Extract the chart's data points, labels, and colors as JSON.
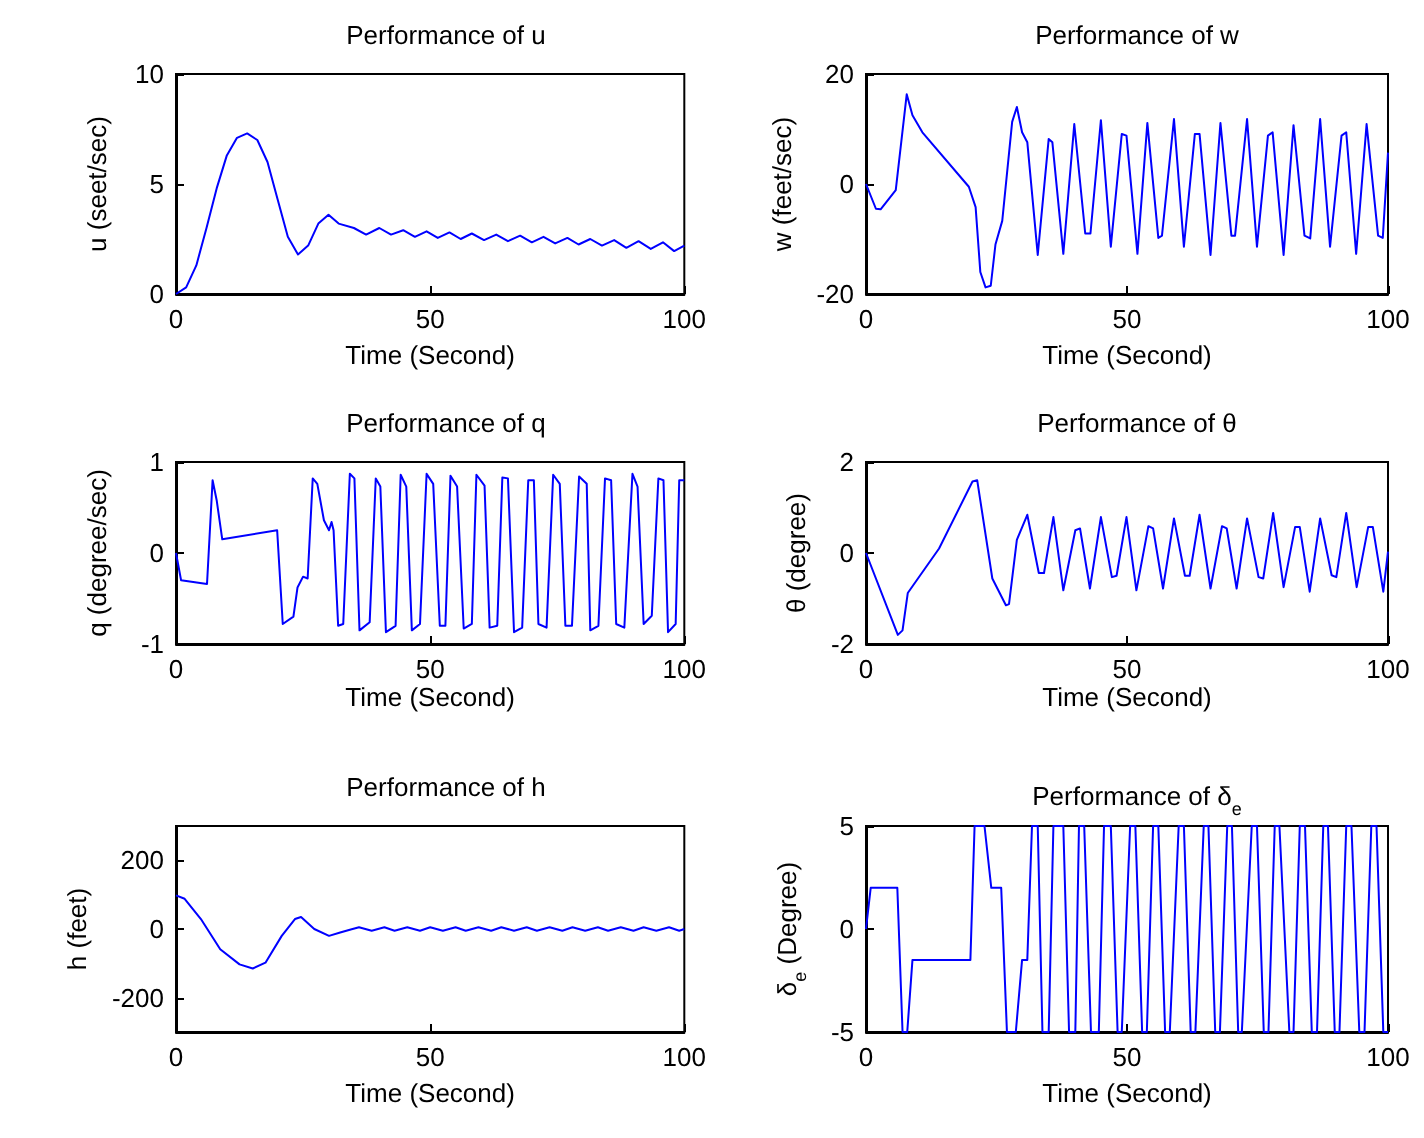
{
  "chart_data": [
    {
      "type": "line",
      "title": "Performance of u",
      "xlabel": "Time (Second)",
      "ylabel": "u (seet/sec)",
      "xlim": [
        0,
        100
      ],
      "ylim": [
        0,
        10
      ],
      "xticks": [
        0,
        50,
        100
      ],
      "yticks": [
        0,
        5,
        10
      ],
      "x": [
        0,
        2,
        4,
        6,
        8,
        10,
        12,
        14,
        16,
        18,
        20,
        22,
        24,
        26,
        28,
        30,
        32,
        35,
        37.4,
        40,
        42.3,
        44.7,
        47,
        49.3,
        51.5,
        53.8,
        56,
        58.2,
        60.6,
        63,
        65.3,
        67.7,
        70,
        72.3,
        74.6,
        77,
        79.2,
        81.5,
        83.8,
        86.2,
        88.6,
        91,
        93.4,
        95.8,
        98,
        100
      ],
      "series": [
        {
          "color": "#0000ff",
          "values": [
            0,
            0.3,
            1.3,
            3.0,
            4.8,
            6.3,
            7.1,
            7.3,
            7.0,
            6.0,
            4.3,
            2.6,
            1.8,
            2.2,
            3.2,
            3.6,
            3.2,
            3.0,
            2.7,
            3.0,
            2.7,
            2.9,
            2.6,
            2.85,
            2.55,
            2.8,
            2.5,
            2.75,
            2.45,
            2.7,
            2.4,
            2.65,
            2.35,
            2.6,
            2.3,
            2.55,
            2.25,
            2.5,
            2.2,
            2.45,
            2.1,
            2.4,
            2.05,
            2.35,
            1.95,
            2.2
          ]
        }
      ]
    },
    {
      "type": "line",
      "title": "Performance of w",
      "xlabel": "Time (Second)",
      "ylabel": "w (feet/sec)",
      "xlim": [
        0,
        100
      ],
      "ylim": [
        -20,
        20
      ],
      "xticks": [
        0,
        50,
        100
      ],
      "yticks": [
        -20,
        0,
        20
      ],
      "x": [
        0,
        1.9,
        2.8,
        5.7,
        7.8,
        8.9,
        10.8,
        19.7,
        21,
        21.9,
        22.9,
        23.9,
        24.8,
        26.1,
        28,
        28.9,
        29.9,
        30.9,
        32.9,
        35,
        35.7,
        37.8,
        39.9,
        42,
        43,
        45,
        46.9,
        49,
        49.9,
        52,
        53.9,
        56,
        56.7,
        59,
        60.9,
        63,
        63.9,
        66,
        67.9,
        70,
        70.7,
        73,
        74.9,
        77,
        77.9,
        80,
        81.9,
        84,
        85.1,
        87,
        88.9,
        91.1,
        92,
        93.9,
        95.9,
        98.1,
        99,
        100
      ],
      "series": [
        {
          "color": "#0000ff",
          "values": [
            0,
            -4.5,
            -4.6,
            -1.1,
            16.3,
            12.5,
            9.4,
            -0.5,
            -4.2,
            -16,
            -18.8,
            -18.5,
            -11,
            -6.7,
            11.3,
            14,
            9.4,
            7.6,
            -12.9,
            8.2,
            7.6,
            -12.7,
            10.9,
            -9,
            -9,
            11.6,
            -11.4,
            9.1,
            8.8,
            -12.7,
            11.1,
            -9.8,
            -9.4,
            11.8,
            -11.4,
            9.1,
            9.1,
            -12.9,
            11.1,
            -9.4,
            -9.4,
            11.8,
            -11.4,
            8.8,
            9.4,
            -12.9,
            10.7,
            -9.4,
            -9.9,
            11.8,
            -11.4,
            8.8,
            9.4,
            -12.7,
            10.9,
            -9.4,
            -9.8,
            5.7
          ]
        }
      ]
    },
    {
      "type": "line",
      "title": "Performance of q",
      "xlabel": "Time (Second)",
      "ylabel": "q (degree/sec)",
      "xlim": [
        0,
        100
      ],
      "ylim": [
        -1,
        1
      ],
      "xticks": [
        0,
        50,
        100
      ],
      "yticks": [
        -1,
        0,
        1
      ],
      "x": [
        0,
        1,
        6.1,
        7.2,
        8,
        9.1,
        19.9,
        21,
        23.1,
        23.9,
        25,
        25.9,
        26.9,
        27.8,
        29.1,
        30.1,
        30.6,
        31,
        31.9,
        32.9,
        34.2,
        35.1,
        36.1,
        38.1,
        39.3,
        40.2,
        41.3,
        43.2,
        44.2,
        45.3,
        46.4,
        48,
        49.3,
        50.6,
        51.9,
        53,
        54,
        55.3,
        56.6,
        58.2,
        59.1,
        60.7,
        61.7,
        63.2,
        64.2,
        65.3,
        66.5,
        68.1,
        69.3,
        70.4,
        71.3,
        72.9,
        74.2,
        75.5,
        76.6,
        77.9,
        79.3,
        80.8,
        81.5,
        83.1,
        84.4,
        85.6,
        86.6,
        88.2,
        89.8,
        90.8,
        92,
        93.6,
        94.9,
        95.9,
        96.8,
        98.3,
        99,
        100
      ],
      "series": [
        {
          "color": "#0000ff",
          "values": [
            0,
            -0.3,
            -0.34,
            0.8,
            0.58,
            0.15,
            0.25,
            -0.78,
            -0.7,
            -0.38,
            -0.26,
            -0.28,
            0.82,
            0.76,
            0.36,
            0.25,
            0.34,
            0.25,
            -0.8,
            -0.78,
            0.87,
            0.82,
            -0.85,
            -0.76,
            0.82,
            0.73,
            -0.87,
            -0.8,
            0.86,
            0.73,
            -0.85,
            -0.78,
            0.87,
            0.76,
            -0.8,
            -0.8,
            0.85,
            0.73,
            -0.83,
            -0.78,
            0.86,
            0.74,
            -0.82,
            -0.8,
            0.83,
            0.82,
            -0.87,
            -0.82,
            0.8,
            0.8,
            -0.78,
            -0.82,
            0.86,
            0.76,
            -0.8,
            -0.8,
            0.84,
            0.76,
            -0.85,
            -0.8,
            0.82,
            0.8,
            -0.78,
            -0.82,
            0.87,
            0.73,
            -0.78,
            -0.69,
            0.82,
            0.8,
            -0.87,
            -0.78,
            0.8,
            0.8
          ]
        }
      ]
    },
    {
      "type": "line",
      "title": "Performance of θ",
      "xlabel": "Time (Second)",
      "ylabel": "θ (degree)",
      "xlim": [
        0,
        100
      ],
      "ylim": [
        -2,
        2
      ],
      "xticks": [
        0,
        50,
        100
      ],
      "yticks": [
        -2,
        0,
        2
      ],
      "x": [
        0,
        6.1,
        7,
        8,
        14,
        20.4,
        21.3,
        24.2,
        26.8,
        27.4,
        28.9,
        30.9,
        33.1,
        34.1,
        35.9,
        37.8,
        40.1,
        41,
        42.9,
        45,
        47.1,
        48,
        49.9,
        51.8,
        54.1,
        55,
        56.9,
        59,
        61.1,
        62,
        63.9,
        66,
        68.2,
        69.1,
        71,
        73,
        75.2,
        76.1,
        78,
        80,
        82.2,
        83.1,
        85,
        87,
        89.2,
        90.1,
        92,
        94,
        96.2,
        97.1,
        99.1,
        100
      ],
      "series": [
        {
          "color": "#0000ff",
          "values": [
            0,
            -1.8,
            -1.7,
            -0.88,
            0.1,
            1.57,
            1.6,
            -0.56,
            -1.15,
            -1.12,
            0.29,
            0.84,
            -0.44,
            -0.44,
            0.79,
            -0.82,
            0.5,
            0.54,
            -0.78,
            0.79,
            -0.53,
            -0.5,
            0.79,
            -0.82,
            0.59,
            0.54,
            -0.78,
            0.76,
            -0.5,
            -0.5,
            0.84,
            -0.78,
            0.59,
            0.54,
            -0.78,
            0.76,
            -0.53,
            -0.56,
            0.88,
            -0.75,
            0.57,
            0.57,
            -0.85,
            0.76,
            -0.49,
            -0.53,
            0.88,
            -0.75,
            0.57,
            0.57,
            -0.85,
            0.03
          ]
        }
      ]
    },
    {
      "type": "line",
      "title": "Performance of h",
      "xlabel": "Time (Second)",
      "ylabel": "h (feet)",
      "xlim": [
        0,
        100
      ],
      "ylim": [
        -300,
        300
      ],
      "xticks": [
        0,
        50,
        100
      ],
      "yticks": [
        -200,
        0,
        200
      ],
      "x": [
        0,
        1.7,
        4.9,
        8.7,
        12.5,
        15.1,
        17.6,
        20.8,
        23.4,
        24.6,
        27.2,
        30.1,
        32.3,
        34.2,
        36,
        38.5,
        41,
        43,
        45.5,
        48,
        50,
        52.5,
        55,
        57,
        59.5,
        62,
        64,
        66.5,
        69,
        71,
        73.5,
        76,
        78,
        80.5,
        83,
        85,
        87.5,
        90,
        92,
        94.5,
        97,
        99,
        100
      ],
      "series": [
        {
          "color": "#0000ff",
          "values": [
            98,
            88,
            29,
            -59,
            -103,
            -115,
            -98,
            -20,
            29,
            35,
            0,
            -20,
            -10,
            -2,
            5,
            -5,
            5,
            -5,
            5,
            -5,
            5,
            -5,
            5,
            -5,
            5,
            -5,
            5,
            -5,
            5,
            -5,
            5,
            -5,
            5,
            -5,
            5,
            -5,
            5,
            -5,
            5,
            -5,
            5,
            -5,
            0
          ]
        }
      ]
    },
    {
      "type": "line",
      "title": "Performance of δ$_{e}$",
      "xlabel": "Time (Second)",
      "ylabel": "δ$_{e}$ (Degree)",
      "xlim": [
        0,
        100
      ],
      "ylim": [
        -5,
        5
      ],
      "xticks": [
        0,
        50,
        100
      ],
      "yticks": [
        -5,
        0,
        5
      ],
      "x": [
        0,
        0.9,
        6,
        7,
        7.9,
        8.9,
        20,
        20.8,
        22.7,
        24,
        25.9,
        27,
        28.7,
        29.9,
        30.9,
        31.8,
        32.9,
        33.8,
        35,
        35.9,
        37.8,
        38.9,
        40.1,
        40.8,
        41.8,
        43.1,
        44.6,
        45.6,
        46.9,
        48.2,
        49,
        50.6,
        51.6,
        52.9,
        53.8,
        55,
        56,
        57.3,
        58.2,
        59.9,
        60.9,
        62.2,
        63.1,
        64.7,
        65.6,
        66.9,
        67.8,
        69.2,
        70.1,
        71.3,
        72,
        73.9,
        74.9,
        76.2,
        77.1,
        78.3,
        79.2,
        81.1,
        81.9,
        83.1,
        84.1,
        85.4,
        86.4,
        87.6,
        88.5,
        89.8,
        90.7,
        92,
        93,
        94.5,
        95.5,
        96.8,
        97.8,
        99.1,
        100
      ],
      "series": [
        {
          "color": "#0000ff",
          "values": [
            0,
            2,
            2,
            -5,
            -5,
            -1.5,
            -1.5,
            5,
            5,
            2,
            2,
            -5,
            -5,
            -1.5,
            -1.5,
            5,
            5,
            -5,
            -5,
            5,
            5,
            -5,
            -5,
            5,
            5,
            -5,
            -5,
            5,
            5,
            -5,
            -5,
            5,
            5,
            -5,
            -5,
            5,
            5,
            -5,
            -5,
            5,
            5,
            -5,
            -5,
            5,
            5,
            -5,
            -5,
            5,
            5,
            -5,
            -5,
            5,
            5,
            -5,
            -5,
            5,
            5,
            -5,
            -5,
            5,
            5,
            -5,
            -5,
            5,
            5,
            -5,
            -5,
            5,
            5,
            -5,
            -5,
            5,
            5,
            -5,
            -5
          ]
        }
      ]
    }
  ]
}
